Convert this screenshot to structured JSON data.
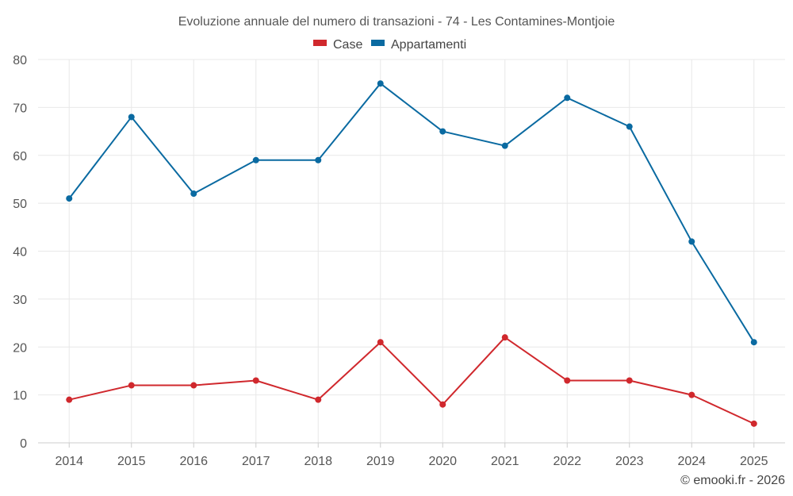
{
  "chart_data": {
    "type": "line",
    "title": "Evoluzione annuale del numero di transazioni - 74 - Les Contamines-Montjoie",
    "categories": [
      "2014",
      "2015",
      "2016",
      "2017",
      "2018",
      "2019",
      "2020",
      "2021",
      "2022",
      "2023",
      "2024",
      "2025"
    ],
    "series": [
      {
        "name": "Case",
        "color": "#d0282d",
        "values": [
          9,
          12,
          12,
          13,
          9,
          21,
          8,
          22,
          13,
          13,
          10,
          4
        ]
      },
      {
        "name": "Appartamenti",
        "color": "#0a6aa1",
        "values": [
          51,
          68,
          52,
          59,
          59,
          75,
          65,
          62,
          72,
          66,
          42,
          21
        ]
      }
    ],
    "ylim": [
      0,
      80
    ],
    "yticks": [
      0,
      10,
      20,
      30,
      40,
      50,
      60,
      70,
      80
    ],
    "grid": true,
    "legend": "top-center",
    "xlabel": "",
    "ylabel": ""
  },
  "credit": "© emooki.fr - 2026"
}
